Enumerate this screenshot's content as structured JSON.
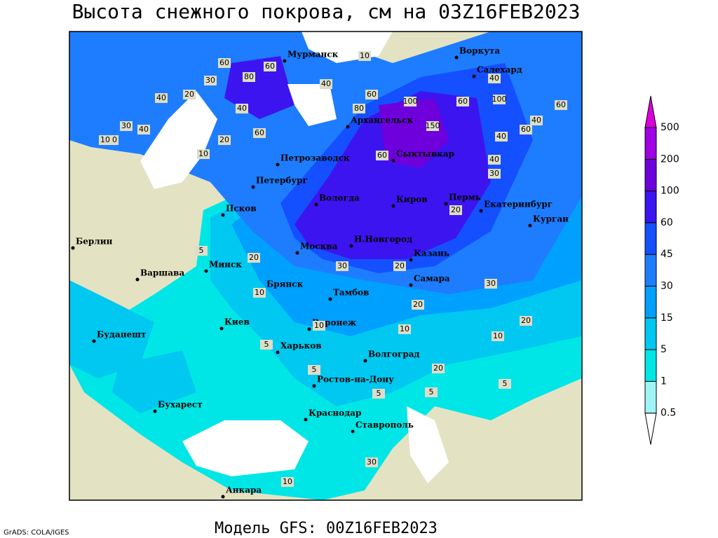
{
  "header": {
    "title": "Высота снежного покрова, см на 03Z16FEB2023"
  },
  "footer": {
    "model": "Модель GFS: 00Z16FEB2023",
    "credit": "GrADS: COLA/IGES"
  },
  "colorbar": {
    "levels": [
      0.5,
      1,
      5,
      15,
      30,
      45,
      60,
      100,
      200,
      500
    ],
    "colors": [
      "#ffffff",
      "#9ff5f5",
      "#00e6e6",
      "#00c8f0",
      "#00a0ff",
      "#1e7dff",
      "#1450ff",
      "#3c14f0",
      "#6e00dc",
      "#a000e6",
      "#dc00dc"
    ]
  },
  "map": {
    "land_color": "#e3e3c3",
    "cities": [
      "Мурманск",
      "Воркута",
      "Салехард",
      "Архангельск",
      "Петрозаводск",
      "Сыктывкар",
      "Петербург",
      "Вологда",
      "Киров",
      "Пермь",
      "Екатеринбург",
      "Курган",
      "Псков",
      "Берлин",
      "Москва",
      "Н.Новгород",
      "Казань",
      "Варшава",
      "Минск",
      "Брянск",
      "Самара",
      "Тамбов",
      "Киев",
      "Воронеж",
      "Будапешт",
      "Харьков",
      "Волгоград",
      "Ростов-на-Дону",
      "Бухарест",
      "Краснодар",
      "Ставрополь",
      "Анкара"
    ],
    "contour_labels": [
      60,
      80,
      60,
      40,
      30,
      20,
      40,
      30,
      20,
      40,
      10,
      20,
      10,
      60,
      40,
      60,
      80,
      100,
      150,
      60,
      40,
      100,
      60,
      60,
      40,
      40,
      60,
      40,
      30,
      20,
      10,
      30,
      20,
      10,
      5,
      5,
      20,
      10,
      5,
      10,
      20,
      10,
      5,
      30,
      30,
      5,
      10,
      20,
      5,
      20
    ]
  }
}
